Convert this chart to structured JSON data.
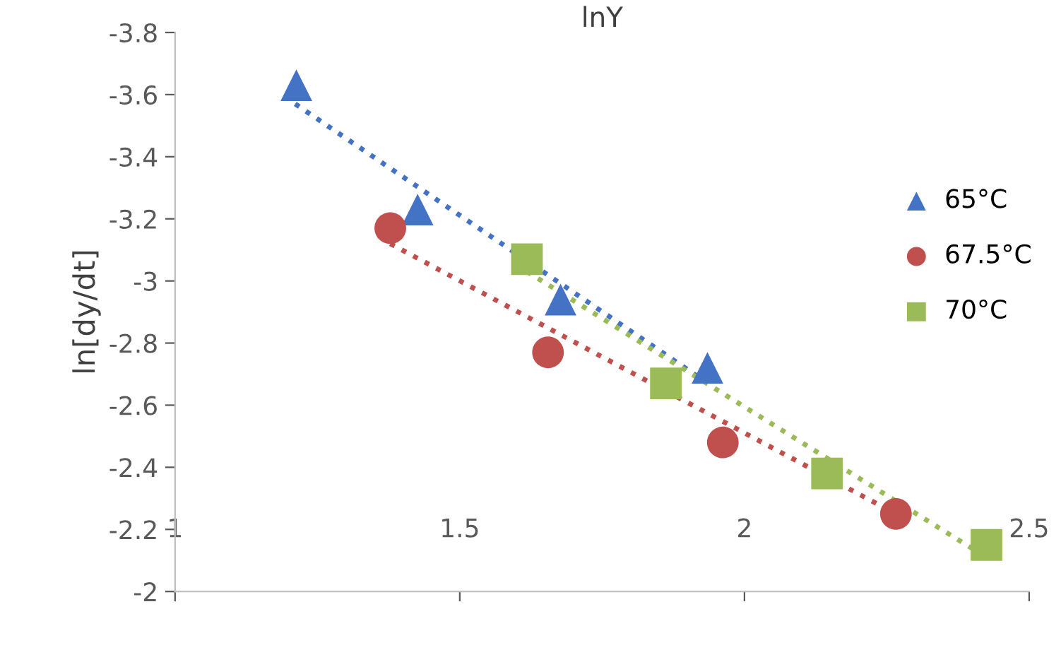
{
  "chart_data": {
    "type": "scatter",
    "title": "lnY",
    "ylabel": "ln[dy/dt]",
    "xlim": [
      1,
      2.5
    ],
    "xticks": [
      1,
      1.5,
      2,
      2.5
    ],
    "ylim": [
      -2,
      -3.8
    ],
    "yticks": [
      -2,
      -2.2,
      -2.4,
      -2.6,
      -2.8,
      -3,
      -3.2,
      -3.4,
      -3.6,
      -3.8
    ],
    "grid": false,
    "legend": "right",
    "series": [
      {
        "type": "line",
        "color": "#4472c4",
        "line_style": "dotted",
        "marker": "none",
        "x": [
          1.211,
          1.92
        ],
        "values": [
          -3.57,
          -2.69
        ]
      },
      {
        "type": "line",
        "color": "#c0504d",
        "line_style": "dotted",
        "marker": "none",
        "x": [
          1.378,
          2.266
        ],
        "values": [
          -3.12,
          -2.25
        ]
      },
      {
        "type": "line",
        "color": "#9bbb59",
        "line_style": "dotted",
        "marker": "none",
        "x": [
          1.618,
          2.425
        ],
        "values": [
          -3.03,
          -2.11
        ]
      },
      {
        "name": "65°C",
        "color": "#4472c4",
        "marker": "triangle",
        "x": [
          1.213,
          1.426,
          1.677,
          1.935
        ],
        "values": [
          -3.63,
          -3.23,
          -2.94,
          -2.72
        ]
      },
      {
        "name": "67.5°C",
        "color": "#c0504d",
        "marker": "circle",
        "x": [
          1.378,
          1.655,
          1.962,
          2.266
        ],
        "values": [
          -3.17,
          -2.77,
          -2.48,
          -2.25
        ]
      },
      {
        "name": "70°C",
        "color": "#9bbb59",
        "marker": "square",
        "x": [
          1.618,
          1.862,
          2.145,
          2.425
        ],
        "values": [
          -3.07,
          -2.67,
          -2.38,
          -2.15
        ]
      }
    ]
  }
}
